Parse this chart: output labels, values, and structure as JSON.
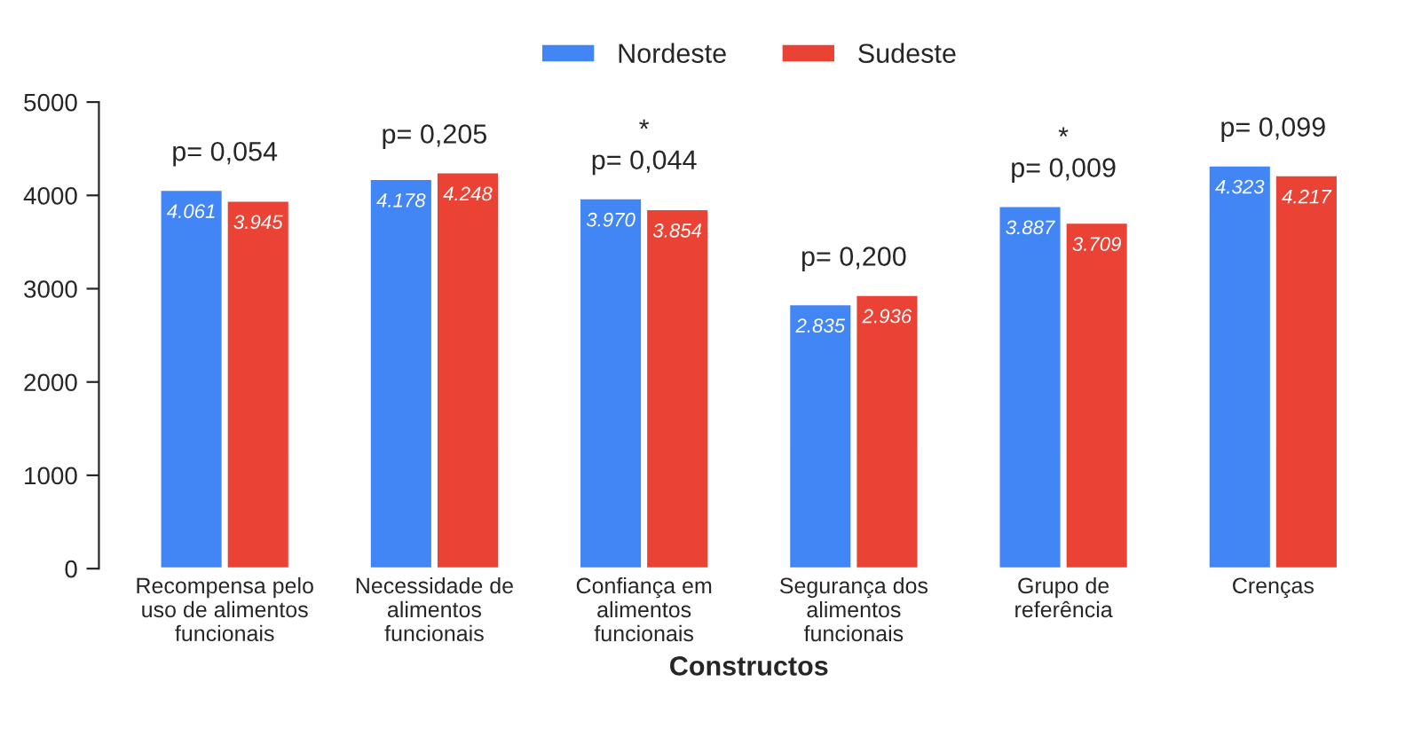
{
  "chart_data": {
    "type": "bar",
    "xlabel": "Constructos",
    "categories": [
      "Recompensa pelo\nuso de alimentos\nfuncionais",
      "Necessidade de\nalimentos\nfuncionais",
      "Confiança em\nalimentos\nfuncionais",
      "Segurança dos\nalimentos\nfuncionais",
      "Grupo de\nreferência",
      "Crenças"
    ],
    "series": [
      {
        "name": "Nordeste",
        "color": "#4285f4",
        "values": [
          4061,
          4178,
          3970,
          2835,
          3887,
          4323
        ],
        "value_labels": [
          "4.061",
          "4.178",
          "3.970",
          "2.835",
          "3.887",
          "4.323"
        ]
      },
      {
        "name": "Sudeste",
        "color": "#ea4335",
        "values": [
          3945,
          4248,
          3854,
          2936,
          3709,
          4217
        ],
        "value_labels": [
          "3.945",
          "4.248",
          "3.854",
          "2.936",
          "3.709",
          "4.217"
        ]
      }
    ],
    "ylim": [
      0,
      5000
    ],
    "yticks": [
      0,
      1000,
      2000,
      3000,
      4000,
      5000
    ],
    "grid": false,
    "legend": "top",
    "annotations": [
      "p= 0,054",
      "p= 0,205",
      "*\np= 0,044",
      "p= 0,200",
      "*\np= 0,009",
      "p= 0,099"
    ]
  }
}
